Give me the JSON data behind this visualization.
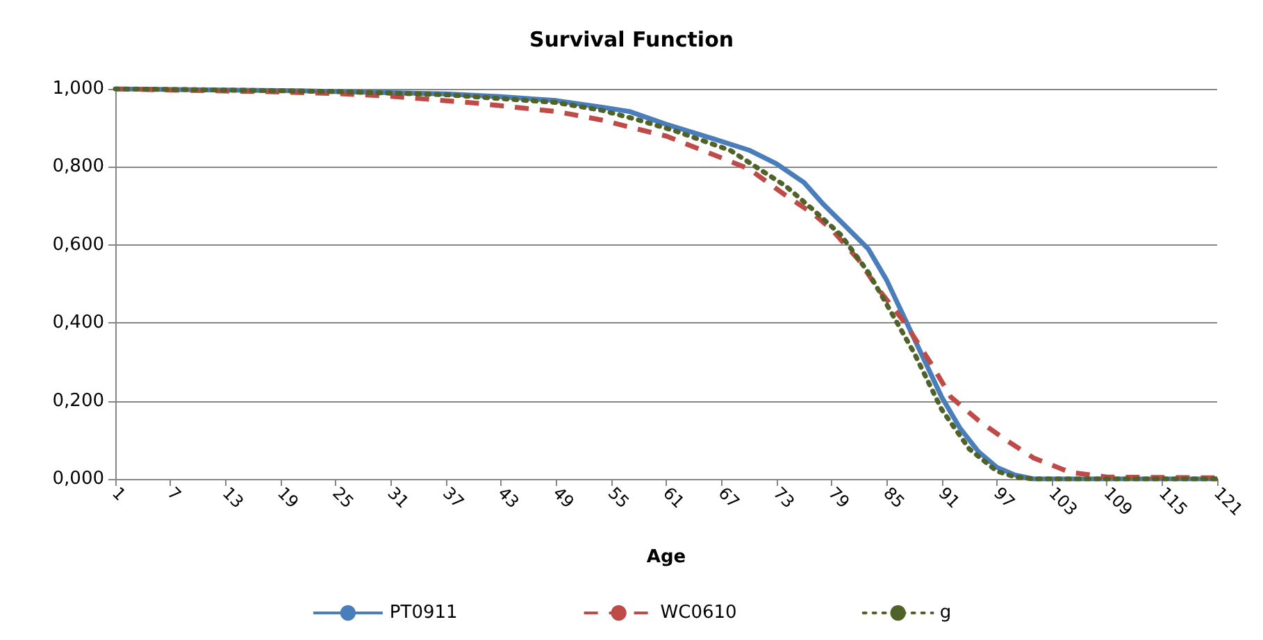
{
  "chart_data": {
    "type": "line",
    "title": "Survival Function",
    "xlabel": "Age",
    "xlim": [
      1,
      121
    ],
    "xticks": [
      1,
      7,
      13,
      19,
      25,
      31,
      37,
      43,
      49,
      55,
      61,
      67,
      73,
      79,
      85,
      91,
      97,
      103,
      109,
      115,
      121
    ],
    "ylim": [
      0,
      1
    ],
    "yticks": [
      {
        "value": 0,
        "label": "0,000"
      },
      {
        "value": 0.2,
        "label": "0,200"
      },
      {
        "value": 0.4,
        "label": "0,400"
      },
      {
        "value": 0.6,
        "label": "0,600"
      },
      {
        "value": 0.8,
        "label": "0,800"
      },
      {
        "value": 1,
        "label": "1,000"
      }
    ],
    "grid": "y",
    "legend": "bottom",
    "marker": "none",
    "series": [
      {
        "name": "PT0911",
        "color": "#4a7ebb",
        "line_style": "solid",
        "x": [
          1,
          13,
          21,
          31,
          37,
          43,
          49,
          54,
          57,
          61,
          66,
          70,
          73,
          76,
          78,
          80,
          83,
          85,
          87,
          89,
          91,
          93,
          95,
          97,
          99,
          101,
          121
        ],
        "values": [
          1.0,
          0.997,
          0.995,
          0.99,
          0.987,
          0.98,
          0.97,
          0.953,
          0.942,
          0.909,
          0.873,
          0.843,
          0.808,
          0.76,
          0.707,
          0.66,
          0.59,
          0.51,
          0.41,
          0.31,
          0.21,
          0.13,
          0.07,
          0.03,
          0.01,
          0.0,
          0.0
        ]
      },
      {
        "name": "WC0610",
        "color": "#be4b48",
        "line_style": "dashed",
        "x": [
          1,
          9,
          17,
          25,
          31,
          40,
          49,
          54,
          57,
          61,
          65,
          70,
          74,
          77,
          79,
          82,
          84,
          87,
          90,
          92,
          95,
          98,
          101,
          105,
          109,
          121
        ],
        "values": [
          1.0,
          0.996,
          0.993,
          0.988,
          0.981,
          0.964,
          0.942,
          0.92,
          0.902,
          0.879,
          0.842,
          0.795,
          0.727,
          0.68,
          0.64,
          0.56,
          0.49,
          0.4,
          0.29,
          0.21,
          0.15,
          0.1,
          0.054,
          0.017,
          0.005,
          0.003
        ]
      },
      {
        "name": "g",
        "color": "#4f6228",
        "line_style": "dotted",
        "x": [
          1,
          13,
          25,
          37,
          49,
          54,
          58,
          62,
          68,
          74,
          77,
          80,
          83,
          85,
          88,
          91,
          94,
          97,
          99,
          101,
          121
        ],
        "values": [
          1.0,
          0.997,
          0.993,
          0.985,
          0.965,
          0.945,
          0.92,
          0.892,
          0.842,
          0.751,
          0.69,
          0.626,
          0.53,
          0.448,
          0.323,
          0.178,
          0.077,
          0.02,
          0.005,
          0.0,
          0.0
        ]
      }
    ]
  }
}
